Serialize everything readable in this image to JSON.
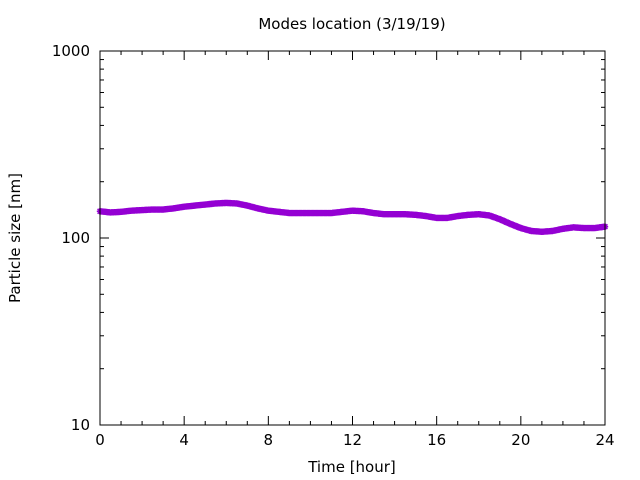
{
  "chart_data": {
    "type": "scatter",
    "title": "Modes location (3/19/19)",
    "xlabel": "Time [hour]",
    "ylabel": "Particle size [nm]",
    "xlim": [
      0,
      24
    ],
    "ylim": [
      10,
      1000
    ],
    "y_scale": "log",
    "grid": false,
    "legend": "none",
    "x_ticks": [
      0,
      4,
      8,
      12,
      16,
      20,
      24
    ],
    "y_ticks": [
      10,
      100,
      1000
    ],
    "x_tick_labels": [
      "0",
      "4",
      "8",
      "12",
      "16",
      "20",
      "24"
    ],
    "y_tick_labels": [
      "10",
      "100",
      "1000"
    ],
    "series": [
      {
        "color": "#9400d3",
        "marker": "star",
        "x": [
          0,
          0.5,
          1,
          1.5,
          2,
          2.5,
          3,
          3.5,
          4,
          4.5,
          5,
          5.5,
          6,
          6.5,
          7,
          7.5,
          8,
          8.5,
          9,
          9.5,
          10,
          10.5,
          11,
          11.5,
          12,
          12.5,
          13,
          13.5,
          14,
          14.5,
          15,
          15.5,
          16,
          16.5,
          17,
          17.5,
          18,
          18.5,
          19,
          19.5,
          20,
          20.5,
          21,
          21.5,
          22,
          22.5,
          23,
          23.5,
          24
        ],
        "y": [
          139,
          137,
          138,
          140,
          141,
          142,
          142,
          144,
          147,
          149,
          151,
          153,
          154,
          153,
          149,
          144,
          140,
          138,
          136,
          136,
          136,
          136,
          136,
          138,
          140,
          139,
          136,
          134,
          134,
          134,
          133,
          131,
          128,
          128,
          131,
          133,
          134,
          132,
          126,
          119,
          113,
          109,
          108,
          109,
          112,
          114,
          113,
          113,
          115
        ]
      }
    ]
  }
}
